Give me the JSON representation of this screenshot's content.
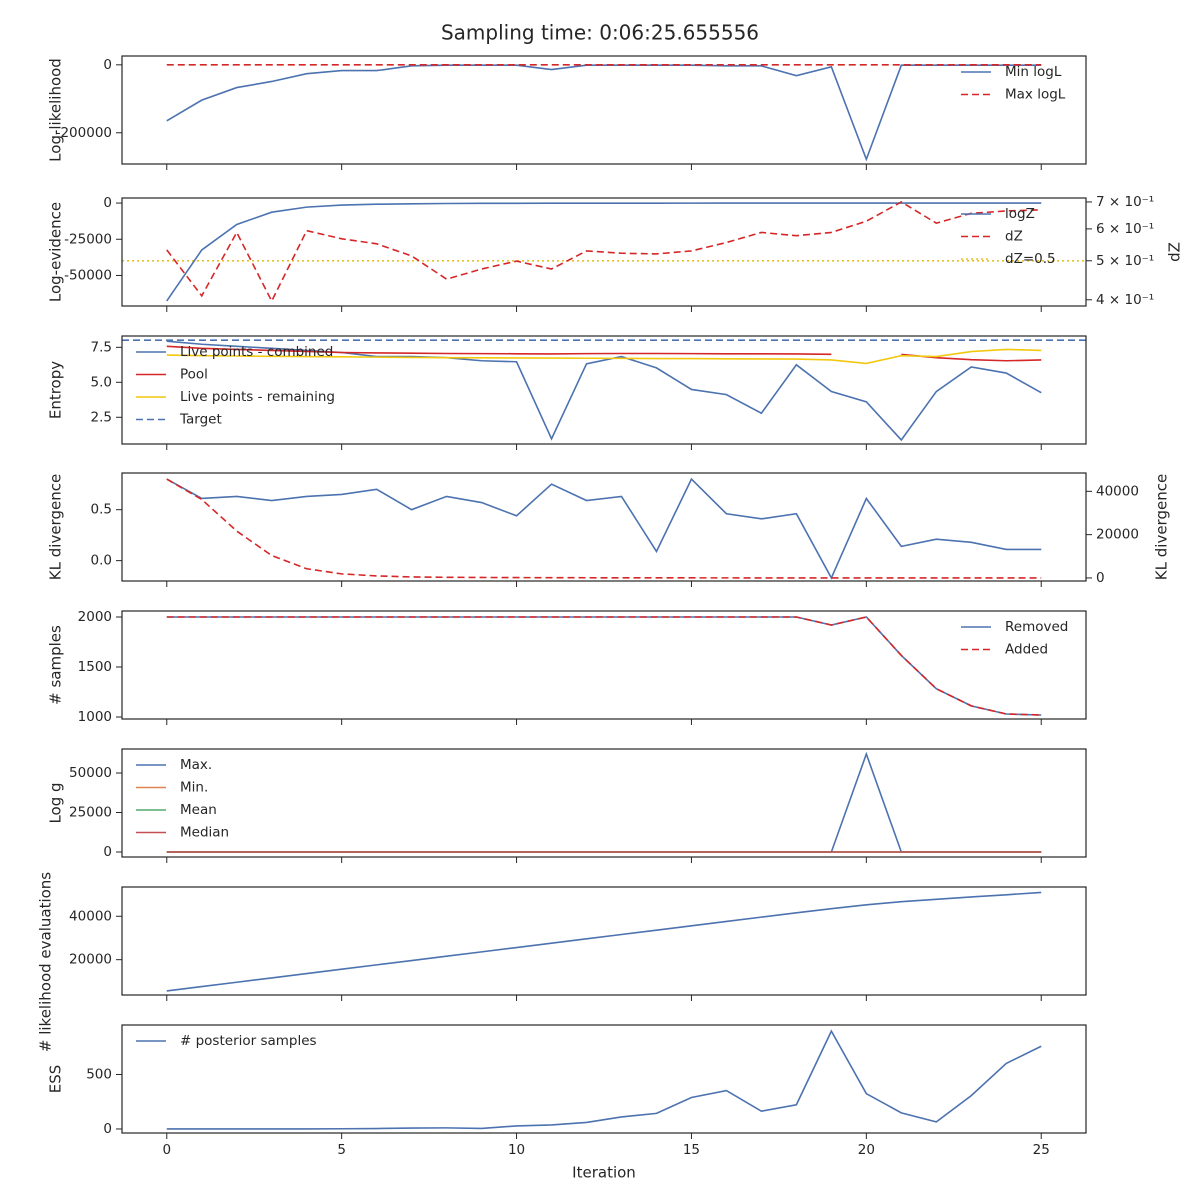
{
  "title": "Sampling time: 0:06:25.655556",
  "xlabel": "Iteration",
  "x": [
    0,
    1,
    2,
    3,
    4,
    5,
    6,
    7,
    8,
    9,
    10,
    11,
    12,
    13,
    14,
    15,
    16,
    17,
    18,
    19,
    20,
    21,
    22,
    23,
    24,
    25
  ],
  "xlim": [
    -1.28,
    26.28
  ],
  "xticks": [
    0,
    5,
    10,
    15,
    20,
    25
  ],
  "chart_data": [
    {
      "type": "line",
      "ylabel": "Log-likelihood",
      "ylim": [
        -292000,
        26000
      ],
      "yticks": [
        -200000,
        0
      ],
      "legend": "upper right",
      "series": [
        {
          "name": "Min logL",
          "color": "#4c72b0",
          "style": "solid",
          "values": [
            -165000,
            -104000,
            -67000,
            -49000,
            -26000,
            -17000,
            -17000,
            -3000,
            -1000,
            -1000,
            -1000,
            -14000,
            -1000,
            -1000,
            -1000,
            -1000,
            -3000,
            -3000,
            -32000,
            -6000,
            -278000,
            -1000,
            -1000,
            -1000,
            -1000,
            -1000
          ]
        },
        {
          "name": "Max logL",
          "color": "#d62728",
          "style": "dashed",
          "values": [
            0,
            0,
            0,
            0,
            0,
            0,
            0,
            0,
            0,
            0,
            0,
            0,
            0,
            0,
            0,
            0,
            0,
            0,
            0,
            0,
            0,
            0,
            0,
            0,
            0,
            0
          ]
        }
      ]
    },
    {
      "type": "line",
      "ylabel": "Log-evidence",
      "y2label": "dZ",
      "ylim": [
        -71100,
        3500
      ],
      "yticks": [
        -50000,
        -25000,
        0
      ],
      "y2lim": [
        0.386,
        0.716
      ],
      "y2log": true,
      "y2ticks": [
        {
          "value": 0.4,
          "label": "4 × 10⁻¹"
        },
        {
          "value": 0.5,
          "label": "5 × 10⁻¹"
        },
        {
          "value": 0.6,
          "label": "6 × 10⁻¹"
        },
        {
          "value": 0.7,
          "label": "7 × 10⁻¹"
        }
      ],
      "legend": "upper right",
      "series": [
        {
          "name": "logZ",
          "color": "#4c72b0",
          "style": "solid",
          "values": [
            -67600,
            -32400,
            -14800,
            -6300,
            -2800,
            -1400,
            -800,
            -500,
            -300,
            -200,
            -150,
            -100,
            -80,
            -60,
            -50,
            -40,
            -30,
            -25,
            -20,
            -15,
            -10,
            -8,
            -6,
            -4,
            -2,
            -1
          ]
        },
        {
          "name": "dZ",
          "color": "#d62728",
          "style": "dashed",
          "axis": "y2",
          "values": [
            0.532,
            0.409,
            0.588,
            0.397,
            0.594,
            0.567,
            0.551,
            0.514,
            0.45,
            0.477,
            0.499,
            0.477,
            0.529,
            0.522,
            0.52,
            0.529,
            0.555,
            0.588,
            0.577,
            0.588,
            0.627,
            0.7,
            0.62,
            0.656,
            0.665,
            0.669
          ]
        }
      ],
      "hlines": [
        {
          "name": "dZ=0.5",
          "value": 0.5,
          "axis": "y2",
          "color": "#e6c229",
          "style": "dotted"
        }
      ]
    },
    {
      "type": "line",
      "ylabel": "Entropy",
      "ylim": [
        0.59,
        8.31
      ],
      "yticks": [
        {
          "value": 2.5,
          "label": "2.5"
        },
        {
          "value": 5,
          "label": "5.0"
        },
        {
          "value": 7.5,
          "label": "7.5"
        }
      ],
      "legend": "upper left",
      "series": [
        {
          "name": "Live points - combined",
          "color": "#4c72b0",
          "style": "solid",
          "values": [
            7.94,
            7.72,
            7.57,
            7.43,
            7.28,
            7.13,
            6.84,
            6.84,
            6.76,
            6.54,
            6.47,
            0.96,
            6.32,
            6.84,
            6.03,
            4.49,
            4.12,
            2.79,
            6.25,
            4.34,
            3.6,
            0.88,
            4.34,
            6.1,
            5.66,
            4.26
          ]
        },
        {
          "name": "Pool",
          "color": "#d62728",
          "style": "solid",
          "values": [
            7.57,
            7.43,
            7.35,
            7.28,
            7.21,
            7.13,
            7.1,
            7.08,
            7.06,
            7.05,
            7.04,
            7.03,
            7.05,
            7.06,
            7.06,
            7.05,
            7.04,
            7.04,
            7.03,
            7.0,
            null,
            6.99,
            6.76,
            6.62,
            6.54,
            6.6
          ]
        },
        {
          "name": "Live points - remaining",
          "color": "#f2c80f",
          "style": "solid",
          "values": [
            6.95,
            6.9,
            6.88,
            6.86,
            6.84,
            6.82,
            6.8,
            6.78,
            6.76,
            6.75,
            6.74,
            6.73,
            6.72,
            6.71,
            6.7,
            6.7,
            6.68,
            6.67,
            6.66,
            6.6,
            6.35,
            6.9,
            6.84,
            7.2,
            7.35,
            7.28
          ]
        }
      ],
      "hlines": [
        {
          "name": "Target",
          "value": 8.01,
          "color": "#4c72b0",
          "style": "dashed"
        }
      ]
    },
    {
      "type": "line",
      "ylabel": "KL divergence",
      "y2label": "KL divergence",
      "ylim": [
        -0.2,
        0.86
      ],
      "yticks": [
        {
          "value": 0,
          "label": "0.0"
        },
        0.5
      ],
      "y2lim": [
        -1410,
        48470
      ],
      "y2ticks": [
        0,
        20000,
        40000
      ],
      "series": [
        {
          "color": "#4c72b0",
          "style": "solid",
          "values": [
            0.8,
            0.61,
            0.63,
            0.59,
            0.63,
            0.65,
            0.7,
            0.5,
            0.63,
            0.57,
            0.44,
            0.75,
            0.59,
            0.63,
            0.09,
            0.8,
            0.46,
            0.41,
            0.46,
            -0.17,
            0.61,
            0.14,
            0.21,
            0.18,
            0.11,
            0.11
          ]
        },
        {
          "color": "#d62728",
          "style": "dashed",
          "axis": "y2",
          "values": [
            45650,
            36240,
            21650,
            10350,
            4240,
            1880,
            940,
            470,
            300,
            220,
            160,
            120,
            90,
            70,
            50,
            40,
            30,
            20,
            15,
            10,
            8,
            6,
            4,
            3,
            2,
            1
          ]
        }
      ]
    },
    {
      "type": "line",
      "ylabel": "# samples",
      "ylim": [
        980,
        2060
      ],
      "yticks": [
        1000,
        1500,
        2000
      ],
      "legend": "upper right",
      "series": [
        {
          "name": "Removed",
          "color": "#4c72b0",
          "style": "solid",
          "values": [
            2000,
            2000,
            2000,
            2000,
            2000,
            2000,
            2000,
            2000,
            2000,
            2000,
            2000,
            2000,
            2000,
            2000,
            2000,
            2000,
            2000,
            2000,
            2000,
            1920,
            2000,
            1616,
            1283,
            1111,
            1030,
            1020
          ]
        },
        {
          "name": "Added",
          "color": "#d62728",
          "style": "dashed",
          "values": [
            2000,
            2000,
            2000,
            2000,
            2000,
            2000,
            2000,
            2000,
            2000,
            2000,
            2000,
            2000,
            2000,
            2000,
            2000,
            2000,
            2000,
            2000,
            2000,
            1920,
            2000,
            1616,
            1283,
            1111,
            1030,
            1020
          ]
        }
      ]
    },
    {
      "type": "line",
      "ylabel": "Log g",
      "ylim": [
        -3160,
        65190
      ],
      "yticks": [
        0,
        25000,
        50000
      ],
      "legend": "upper left",
      "series": [
        {
          "name": "Max.",
          "color": "#4c72b0",
          "style": "solid",
          "values": [
            0,
            0,
            0,
            0,
            0,
            0,
            0,
            0,
            0,
            0,
            0,
            0,
            0,
            0,
            0,
            0,
            0,
            0,
            0,
            0,
            62000,
            0,
            0,
            0,
            0,
            0
          ]
        },
        {
          "name": "Min.",
          "color": "#dd8452",
          "style": "solid",
          "values": [
            0,
            0,
            0,
            0,
            0,
            0,
            0,
            0,
            0,
            0,
            0,
            0,
            0,
            0,
            0,
            0,
            0,
            0,
            0,
            0,
            0,
            0,
            0,
            0,
            0,
            0
          ]
        },
        {
          "name": "Mean",
          "color": "#55a868",
          "style": "solid",
          "values": [
            0,
            0,
            0,
            0,
            0,
            0,
            0,
            0,
            0,
            0,
            0,
            0,
            0,
            0,
            0,
            0,
            0,
            0,
            0,
            0,
            0,
            0,
            0,
            0,
            0,
            0
          ]
        },
        {
          "name": "Median",
          "color": "#c44e52",
          "style": "solid",
          "values": [
            0,
            0,
            0,
            0,
            0,
            0,
            0,
            0,
            0,
            0,
            0,
            0,
            0,
            0,
            0,
            0,
            0,
            0,
            0,
            0,
            0,
            0,
            0,
            0,
            0,
            0
          ]
        }
      ]
    },
    {
      "type": "line",
      "ylabel": "# likelihood evaluations",
      "ylim": [
        3720,
        53490
      ],
      "yticks": [
        20000,
        40000
      ],
      "series": [
        {
          "color": "#4c72b0",
          "style": "solid",
          "values": [
            5600,
            7600,
            9600,
            11600,
            13600,
            15600,
            17600,
            19600,
            21600,
            23600,
            25600,
            27600,
            29600,
            31600,
            33600,
            35600,
            37600,
            39600,
            41600,
            43500,
            45300,
            46700,
            47800,
            48900,
            49900,
            51000
          ]
        }
      ]
    },
    {
      "type": "line",
      "ylabel": "ESS",
      "ylim": [
        -37,
        954
      ],
      "yticks": [
        0,
        500
      ],
      "legend": "upper left",
      "series": [
        {
          "name": "# posterior samples",
          "color": "#4c72b0",
          "style": "solid",
          "values": [
            0,
            0,
            0,
            0,
            0,
            2,
            4,
            8,
            10,
            5,
            28,
            37,
            60,
            110,
            143,
            289,
            352,
            163,
            222,
            898,
            324,
            148,
            65,
            306,
            602,
            759
          ]
        }
      ]
    }
  ]
}
